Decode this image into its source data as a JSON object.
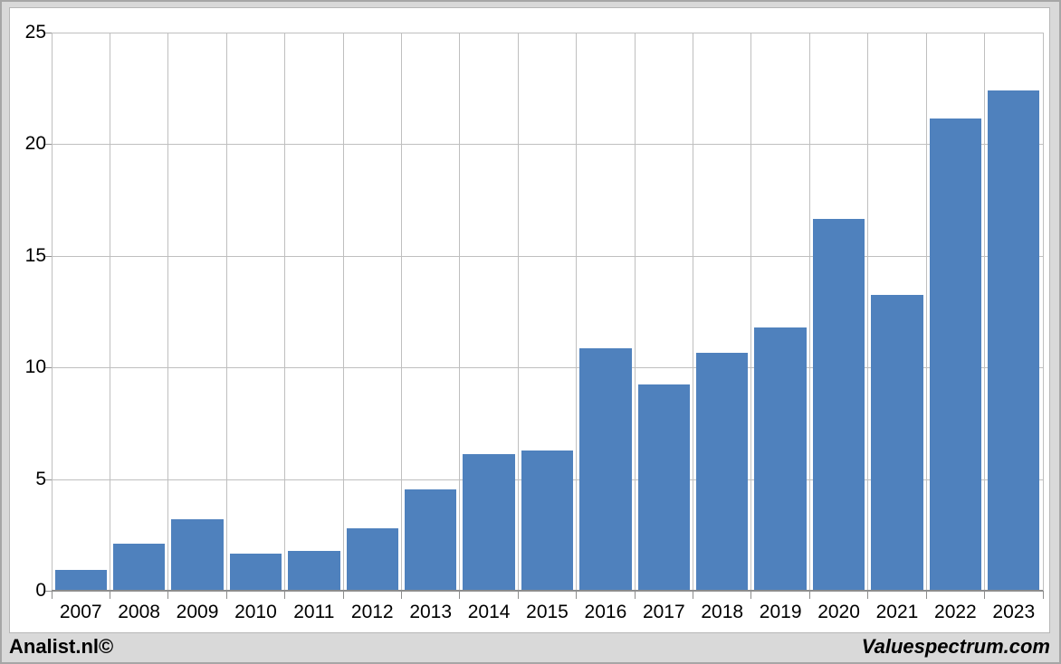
{
  "chart_data": {
    "type": "bar",
    "title": "",
    "xlabel": "",
    "ylabel": "",
    "categories": [
      "2007",
      "2008",
      "2009",
      "2010",
      "2011",
      "2012",
      "2013",
      "2014",
      "2015",
      "2016",
      "2017",
      "2018",
      "2019",
      "2020",
      "2021",
      "2022",
      "2023"
    ],
    "values": [
      0.95,
      2.1,
      3.2,
      1.65,
      1.8,
      2.8,
      4.55,
      6.1,
      6.3,
      10.85,
      9.25,
      10.65,
      11.8,
      16.65,
      13.25,
      21.15,
      22.4
    ],
    "ylim": [
      0,
      25
    ],
    "yticks": [
      0,
      5,
      10,
      15,
      20,
      25
    ],
    "grid": "both",
    "legend_position": "none",
    "colors": {
      "bar": "#4f81bd",
      "gridline": "#bfbfbf",
      "axis_line": "#8c8c8c",
      "plot_background": "#ffffff",
      "outer_background": "#d9d9d9"
    }
  },
  "footer": {
    "left_text": "Analist.nl©",
    "right_text": "Valuespectrum.com"
  }
}
